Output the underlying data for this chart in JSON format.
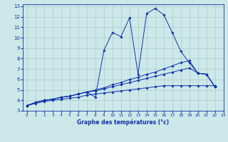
{
  "xlabel": "Graphe des températures (°c)",
  "bg_color": "#cce8e8",
  "grid_color": "#aacccc",
  "line_color": "#1133aa",
  "xlim": [
    -0.5,
    23
  ],
  "ylim": [
    3,
    13.2
  ],
  "xticks": [
    0,
    1,
    2,
    3,
    4,
    5,
    6,
    7,
    8,
    9,
    10,
    11,
    12,
    13,
    14,
    15,
    16,
    17,
    18,
    19,
    20,
    21,
    22,
    23
  ],
  "yticks": [
    3,
    4,
    5,
    6,
    7,
    8,
    9,
    10,
    11,
    12,
    13
  ],
  "series": [
    {
      "x": [
        0,
        1,
        2,
        3,
        4,
        5,
        6,
        7,
        8,
        9,
        10,
        11,
        12,
        13,
        14,
        15,
        16,
        17,
        18,
        19,
        20,
        21,
        22
      ],
      "y": [
        3.5,
        3.8,
        4.0,
        4.1,
        4.3,
        4.4,
        4.6,
        4.8,
        4.3,
        8.8,
        10.5,
        10.1,
        11.9,
        6.5,
        12.3,
        12.8,
        12.2,
        10.5,
        8.7,
        7.6,
        6.6,
        6.5,
        5.3
      ]
    },
    {
      "x": [
        0,
        1,
        2,
        3,
        4,
        5,
        6,
        7,
        8,
        9,
        10,
        11,
        12,
        13,
        14,
        15,
        16,
        17,
        18,
        19,
        20,
        21,
        22
      ],
      "y": [
        3.5,
        3.8,
        4.0,
        4.1,
        4.3,
        4.4,
        4.6,
        4.8,
        5.0,
        5.2,
        5.5,
        5.7,
        6.0,
        6.2,
        6.5,
        6.7,
        7.0,
        7.3,
        7.6,
        7.8,
        6.6,
        6.5,
        5.3
      ]
    },
    {
      "x": [
        0,
        1,
        2,
        3,
        4,
        5,
        6,
        7,
        8,
        9,
        10,
        11,
        12,
        13,
        14,
        15,
        16,
        17,
        18,
        19,
        20,
        21,
        22
      ],
      "y": [
        3.5,
        3.8,
        4.0,
        4.1,
        4.3,
        4.4,
        4.6,
        4.8,
        4.9,
        5.1,
        5.3,
        5.5,
        5.7,
        5.9,
        6.1,
        6.3,
        6.5,
        6.7,
        6.9,
        7.1,
        6.6,
        6.5,
        5.3
      ]
    },
    {
      "x": [
        0,
        1,
        2,
        3,
        4,
        5,
        6,
        7,
        8,
        9,
        10,
        11,
        12,
        13,
        14,
        15,
        16,
        17,
        18,
        19,
        20,
        21,
        22
      ],
      "y": [
        3.5,
        3.7,
        3.9,
        4.0,
        4.1,
        4.2,
        4.3,
        4.5,
        4.6,
        4.7,
        4.8,
        4.9,
        5.0,
        5.1,
        5.2,
        5.3,
        5.4,
        5.4,
        5.4,
        5.4,
        5.4,
        5.4,
        5.4
      ]
    }
  ]
}
